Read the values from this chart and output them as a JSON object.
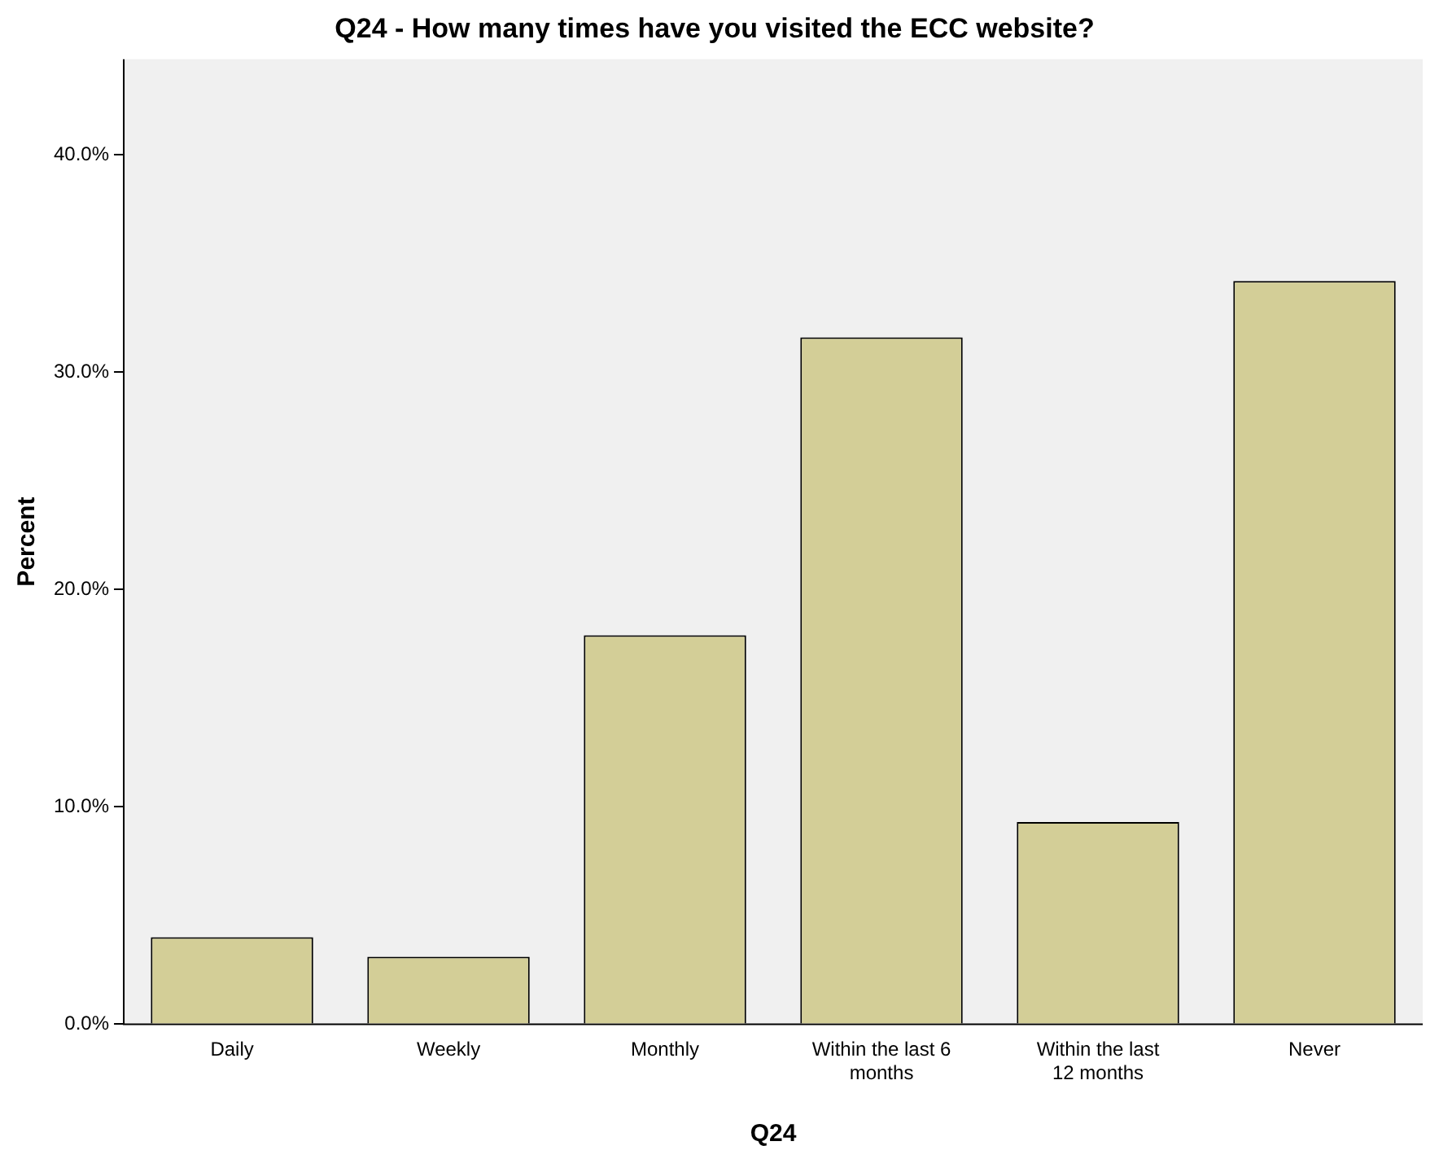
{
  "chart_data": {
    "type": "bar",
    "title": "Q24 - How many times have you visited the ECC website?",
    "xlabel": "Q24",
    "ylabel": "Percent",
    "categories": [
      "Daily",
      "Weekly",
      "Monthly",
      "Within the last 6 months",
      "Within the last 12 months",
      "Never"
    ],
    "values": [
      4.0,
      3.1,
      17.9,
      31.6,
      9.3,
      34.2
    ],
    "color": "#d3ce97",
    "ylim": [
      0,
      44.4
    ],
    "yticks": [
      {
        "value": 0,
        "label": "0.0%"
      },
      {
        "value": 10,
        "label": "10.0%"
      },
      {
        "value": 20,
        "label": "20.0%"
      },
      {
        "value": 30,
        "label": "30.0%"
      },
      {
        "value": 40,
        "label": "40.0%"
      }
    ],
    "grid": false,
    "legend": false
  }
}
